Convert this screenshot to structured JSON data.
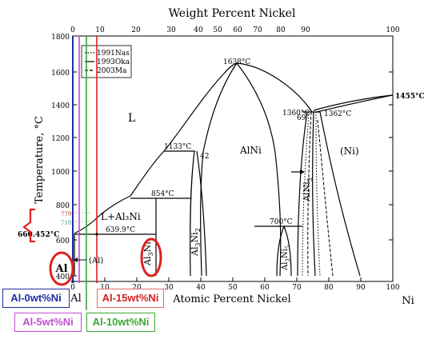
{
  "figure": {
    "top_axis_title": "Weight Percent Nickel",
    "bottom_axis_title": "Atomic Percent Nickel",
    "y_axis_title": "Temperature, °C",
    "left_element": "Al",
    "right_element": "Ni",
    "y_ticks": [
      "1800",
      "1600",
      "1400",
      "1200",
      "1000",
      "800",
      "600",
      "400"
    ],
    "x_ticks_bottom": [
      "0",
      "10",
      "20",
      "30",
      "40",
      "50",
      "60",
      "70",
      "80",
      "90",
      "100"
    ],
    "x_ticks_top": [
      "0",
      "10",
      "20",
      "30",
      "40",
      "50",
      "60",
      "70",
      "80",
      "90",
      "100"
    ]
  },
  "legend": {
    "items": [
      {
        "label": "1991Nas",
        "style": "dotted"
      },
      {
        "label": "1993Oka",
        "style": "solid"
      },
      {
        "label": "2003Ma",
        "style": "dashed"
      }
    ]
  },
  "phase_labels": {
    "liquid": "L",
    "alni": "AlNi",
    "ni": "(Ni)",
    "l_al3ni": "L+Al₃Ni",
    "al3ni_base": "Al",
    "al3ni_sub1": "3",
    "al3ni_tail": "Ni",
    "al3ni2_base": "Al",
    "al3ni2_sub1": "3",
    "al3ni2_mid": "Ni",
    "al3ni2_sub2": "2",
    "al3ni5_base": "Al",
    "al3ni5_sub1": "3",
    "al3ni5_mid": "Ni",
    "al3ni5_sub2": "5",
    "alni3_base": "AlNi",
    "alni3_sub": "3",
    "al_arrow": "(Al)",
    "al_circle": "Al"
  },
  "temperature_labels": {
    "t1638": "1638°C",
    "t1455": "1455°C",
    "t1360": "1360°C",
    "t1362": "1362°C",
    "t69": "69",
    "t1133": "1133°C",
    "t42": "42",
    "t854": "854°C",
    "t700": "700°C",
    "t6399": "639.9°C",
    "t660": "660.452°C",
    "t770": "770",
    "t710": "710"
  },
  "annotations": [
    {
      "label": "Al-0wt%Ni",
      "color": "#1f2f9e"
    },
    {
      "label": "Al-5wt%Ni",
      "color": "#c04fd0"
    },
    {
      "label": "Al-10wt%Ni",
      "color": "#3aa635"
    },
    {
      "label": "Al-15wt%Ni",
      "color": "#d42020"
    }
  ],
  "colors": {
    "blue": "#1f2f9e",
    "purple": "#c04fd0",
    "green": "#3aa635",
    "red": "#e02020",
    "salmon": "#e06a6a"
  }
}
